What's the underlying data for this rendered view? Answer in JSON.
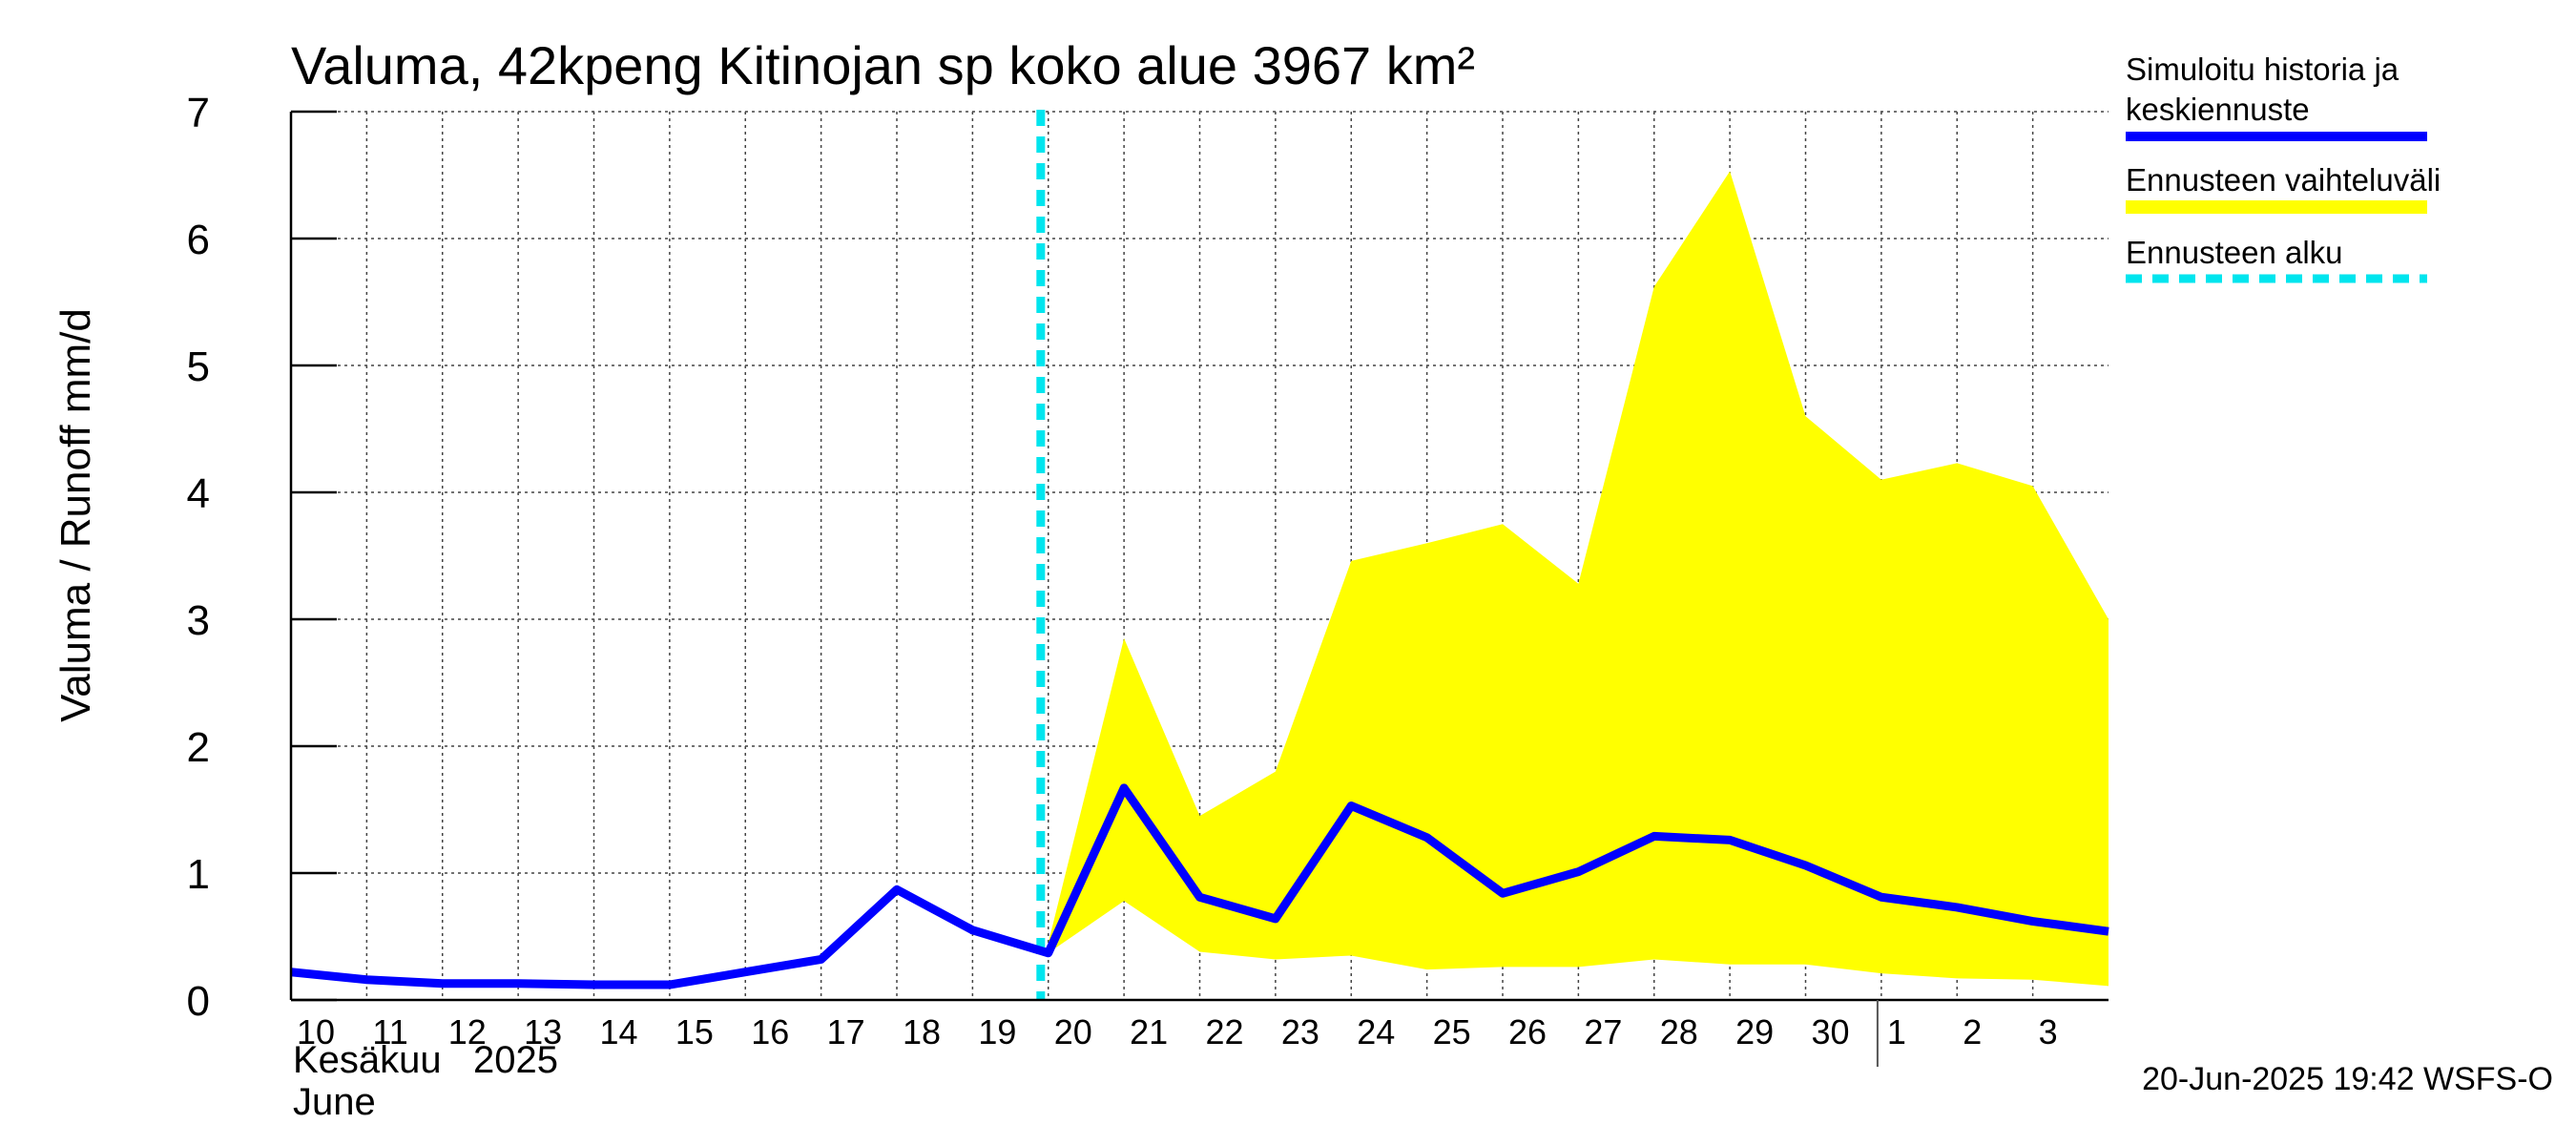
{
  "chart_data": {
    "type": "area",
    "title": "Valuma, 42kpeng Kitinojan sp koko alue 3967 km²",
    "ylabel": "Valuma / Runoff     mm/d",
    "xlabel": "",
    "ylim": [
      0,
      7
    ],
    "yticks": [
      0,
      1,
      2,
      3,
      4,
      5,
      6,
      7
    ],
    "grid": true,
    "x_tick_labels": [
      "10",
      "11",
      "12",
      "13",
      "14",
      "15",
      "16",
      "17",
      "18",
      "19",
      "20",
      "21",
      "22",
      "23",
      "24",
      "25",
      "26",
      "27",
      "28",
      "29",
      "30",
      "1",
      "2",
      "3"
    ],
    "month_labels": {
      "line1": "Kesäkuu   2025",
      "line2": "June"
    },
    "forecast_start_index": 9.9,
    "series": [
      {
        "name": "Simuloitu historia ja keskiennuste",
        "color": "#0000ff",
        "x": [
          0,
          1,
          2,
          3,
          4,
          5,
          6,
          7,
          8,
          9,
          10,
          11,
          12,
          13,
          14,
          15,
          16,
          17,
          18,
          19,
          20,
          21,
          22,
          23,
          24
        ],
        "values": [
          0.22,
          0.16,
          0.13,
          0.13,
          0.12,
          0.12,
          0.22,
          0.32,
          0.87,
          0.55,
          0.37,
          1.67,
          0.81,
          0.64,
          1.53,
          1.28,
          0.84,
          1.01,
          1.29,
          1.26,
          1.06,
          0.81,
          0.73,
          0.62,
          0.54
        ]
      },
      {
        "name": "Ennusteen vaihteluväli",
        "color": "#ffff00",
        "x": [
          10,
          11,
          12,
          13,
          14,
          15,
          16,
          17,
          18,
          19,
          20,
          21,
          22,
          23,
          24
        ],
        "upper": [
          0.45,
          2.85,
          1.45,
          1.8,
          3.46,
          3.6,
          3.75,
          3.28,
          5.62,
          6.53,
          4.6,
          4.1,
          4.23,
          4.05,
          3.0
        ],
        "lower": [
          0.37,
          0.78,
          0.38,
          0.32,
          0.35,
          0.24,
          0.26,
          0.26,
          0.32,
          0.28,
          0.28,
          0.21,
          0.17,
          0.16,
          0.11
        ]
      }
    ],
    "legend": [
      {
        "label_line1": "Simuloitu historia ja",
        "label_line2": "keskiennuste",
        "color": "#0000ff",
        "style": "solid"
      },
      {
        "label_line1": "Ennusteen vaihteluväli",
        "color": "#ffff00",
        "style": "solid"
      },
      {
        "label_line1": "Ennusteen alku",
        "color": "#00e5ee",
        "style": "dashed"
      }
    ],
    "forecast_line_color": "#00e5ee",
    "footer": "20-Jun-2025 19:42 WSFS-O"
  }
}
